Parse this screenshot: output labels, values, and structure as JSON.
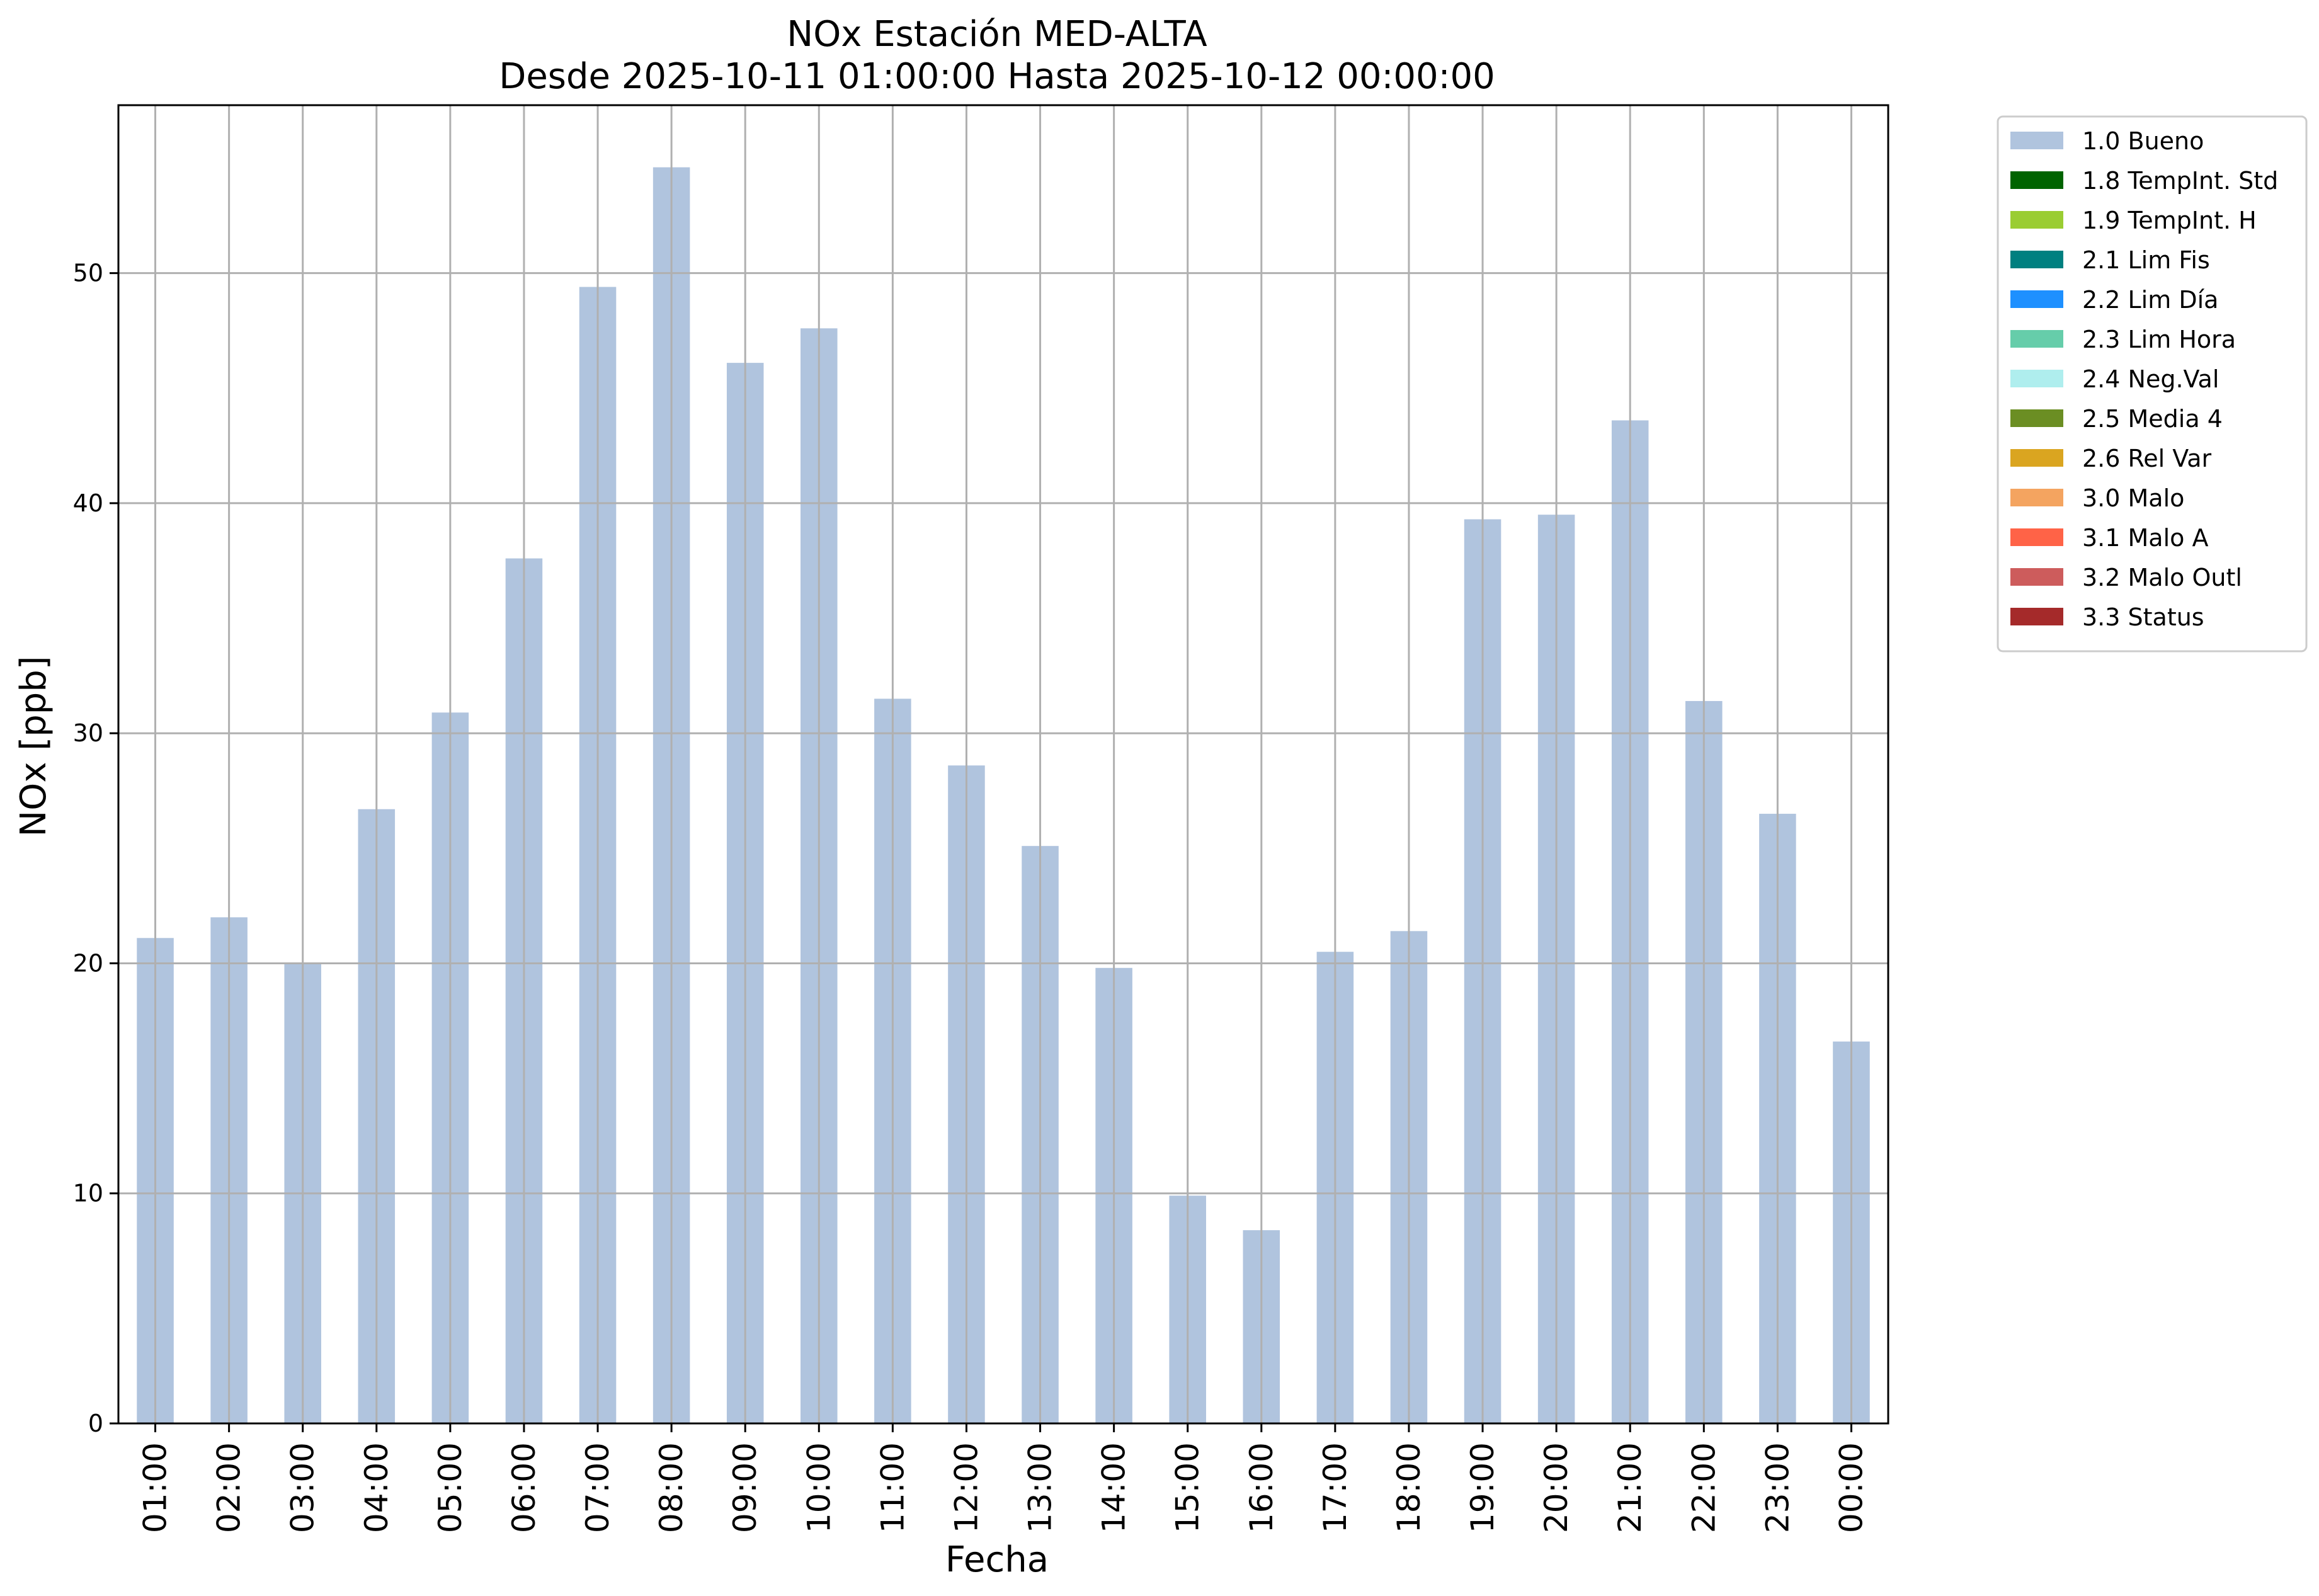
{
  "chart_data": {
    "type": "bar",
    "title": "NOx Estación MED-ALTA",
    "subtitle": "Desde 2025-10-11 01:00:00 Hasta 2025-10-12 00:00:00",
    "xlabel": "Fecha",
    "ylabel": "NOx [ppb]",
    "ylim": [
      0,
      57.3
    ],
    "yticks": [
      "0",
      "10",
      "20",
      "30",
      "40",
      "50"
    ],
    "grid": true,
    "legend_position": "outside right, top",
    "categories": [
      "01:00",
      "02:00",
      "03:00",
      "04:00",
      "05:00",
      "06:00",
      "07:00",
      "08:00",
      "09:00",
      "10:00",
      "11:00",
      "12:00",
      "13:00",
      "14:00",
      "15:00",
      "16:00",
      "17:00",
      "18:00",
      "19:00",
      "20:00",
      "21:00",
      "22:00",
      "23:00",
      "00:00"
    ],
    "series": [
      {
        "name": "1.0 Bueno",
        "color": "#b0c4de",
        "values": [
          21.1,
          22.0,
          20.0,
          26.7,
          30.9,
          37.6,
          49.4,
          54.6,
          46.1,
          47.6,
          31.5,
          28.6,
          25.1,
          19.8,
          9.9,
          8.4,
          20.5,
          21.4,
          39.3,
          39.5,
          43.6,
          31.4,
          26.5,
          16.6
        ]
      }
    ],
    "legend": [
      {
        "label": "1.0 Bueno",
        "color": "#b0c4de"
      },
      {
        "label": "1.8 TempInt. Std",
        "color": "#006400"
      },
      {
        "label": "1.9 TempInt. H",
        "color": "#9acd32"
      },
      {
        "label": "2.1 Lim Fis",
        "color": "#008080"
      },
      {
        "label": "2.2 Lim Día",
        "color": "#1e90ff"
      },
      {
        "label": "2.3 Lim Hora",
        "color": "#66cdaa"
      },
      {
        "label": "2.4 Neg.Val",
        "color": "#afeeee"
      },
      {
        "label": "2.5 Media 4",
        "color": "#6b8e23"
      },
      {
        "label": "2.6 Rel Var",
        "color": "#daa520"
      },
      {
        "label": "3.0 Malo",
        "color": "#f4a460"
      },
      {
        "label": "3.1 Malo A",
        "color": "#ff6347"
      },
      {
        "label": "3.2 Malo Outl",
        "color": "#cd5c5c"
      },
      {
        "label": "3.3 Status",
        "color": "#a52a2a"
      }
    ]
  }
}
